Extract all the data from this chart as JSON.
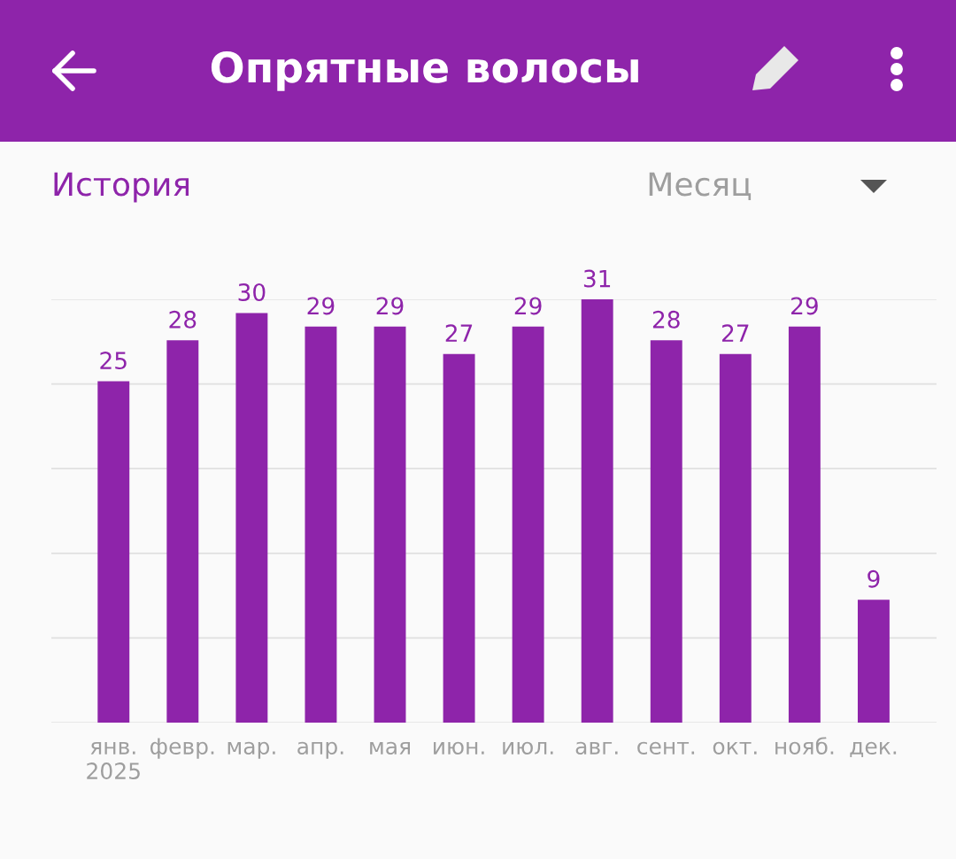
{
  "chart_data": {
    "type": "bar",
    "title": "Опрятные волосы",
    "subtitle": "История",
    "annotations": [
      "Месяц"
    ],
    "categories": [
      "янв.\n2025",
      "февр.",
      "мар.",
      "апр.",
      "мая",
      "июн.",
      "июл.",
      "авг.",
      "сент.",
      "окт.",
      "нояб.",
      "дек."
    ],
    "values": [
      25,
      28,
      30,
      29,
      29,
      27,
      29,
      31,
      28,
      27,
      29,
      9
    ],
    "color": "#8e24aa",
    "data_labels": true,
    "ylim": [
      0,
      31
    ],
    "yticks": [
      {
        "value": 0,
        "label": null
      },
      {
        "value": 6.2,
        "label": null
      },
      {
        "value": 12.4,
        "label": null
      },
      {
        "value": 18.6,
        "label": null
      },
      {
        "value": 24.8,
        "label": null
      },
      {
        "value": 31,
        "label": null
      }
    ],
    "grid": "y",
    "tick_labels": "x"
  }
}
